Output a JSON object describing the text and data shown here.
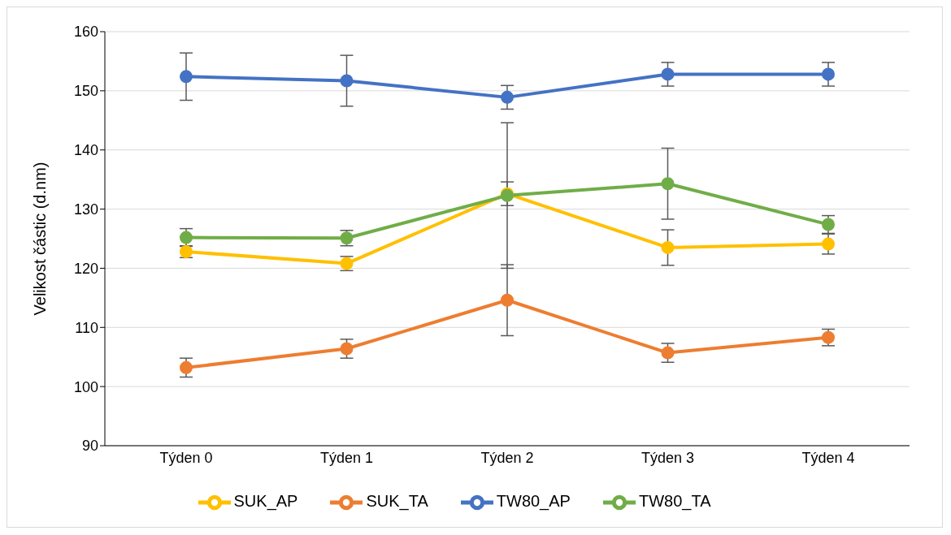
{
  "chart_data": {
    "type": "line",
    "ylabel": "Velikost částic (d.nm)",
    "categories": [
      "Týden 0",
      "Týden 1",
      "Týden 2",
      "Týden 3",
      "Týden 4"
    ],
    "series": [
      {
        "name": "SUK_AP",
        "color": "#ffc000",
        "values": [
          122.8,
          120.8,
          132.6,
          123.5,
          124.1
        ],
        "errors": [
          1,
          1.2,
          2,
          3,
          1.7
        ]
      },
      {
        "name": "SUK_TA",
        "color": "#ed7d31",
        "values": [
          103.2,
          106.4,
          114.6,
          105.7,
          108.3
        ],
        "errors": [
          1.6,
          1.6,
          6,
          1.6,
          1.4
        ]
      },
      {
        "name": "TW80_AP",
        "color": "#4472c4",
        "values": [
          152.4,
          151.7,
          148.9,
          152.8,
          152.8
        ],
        "errors": [
          4,
          4.3,
          2,
          2,
          2
        ]
      },
      {
        "name": "TW80_TA",
        "color": "#70ad47",
        "values": [
          125.2,
          125.1,
          132.3,
          134.3,
          127.4
        ],
        "errors": [
          1.5,
          1.3,
          12.3,
          6,
          1.5
        ]
      }
    ],
    "ylim": [
      90,
      160
    ],
    "yticks": [
      90,
      100,
      110,
      120,
      130,
      140,
      150,
      160
    ],
    "grid": "y",
    "legend": "bottom",
    "marker": "circle",
    "line_style": "solid"
  }
}
